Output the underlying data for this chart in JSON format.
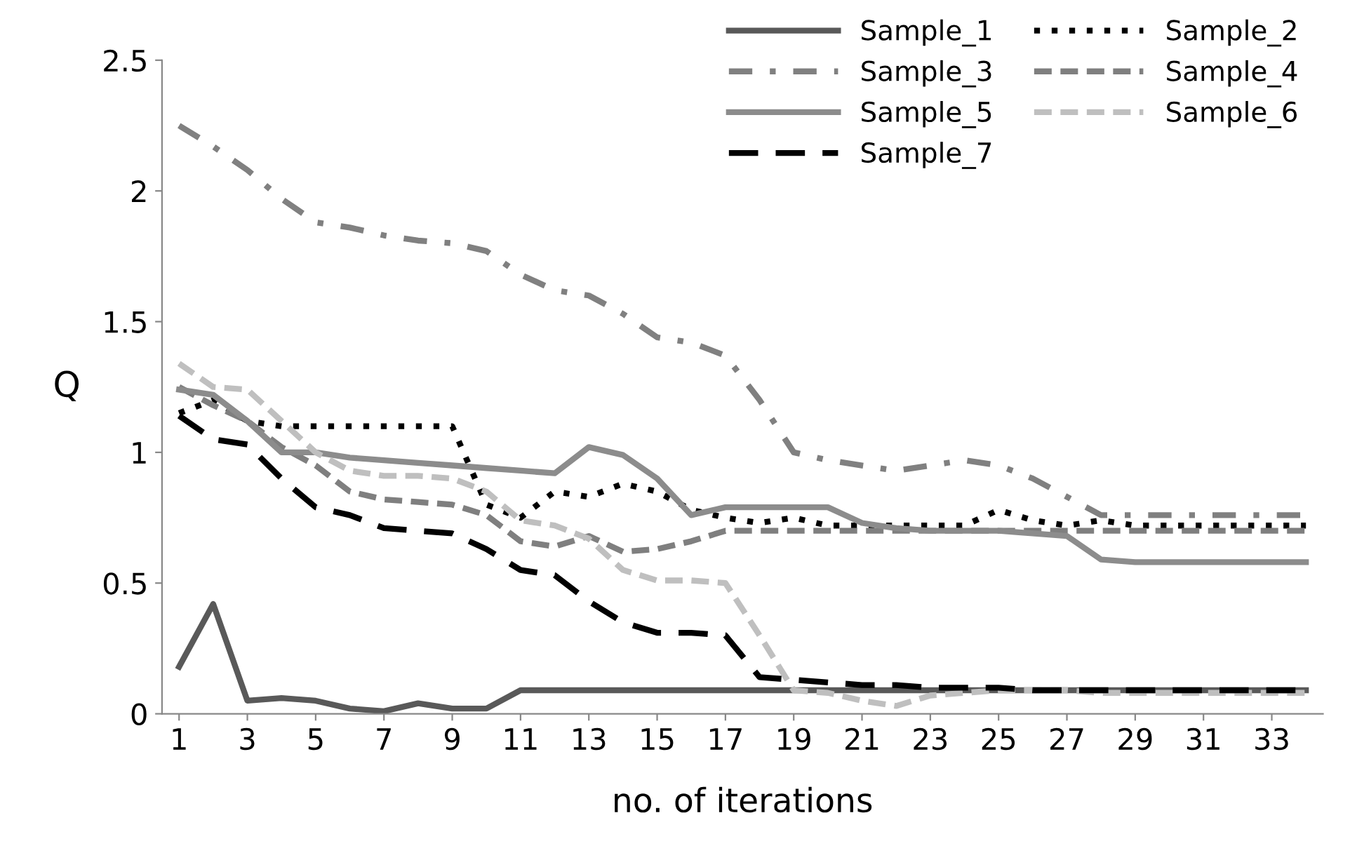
{
  "chart_data": {
    "type": "line",
    "xlabel": "no. of iterations",
    "ylabel": "Q",
    "x": [
      1,
      2,
      3,
      4,
      5,
      6,
      7,
      8,
      9,
      10,
      11,
      12,
      13,
      14,
      15,
      16,
      17,
      18,
      19,
      20,
      21,
      22,
      23,
      24,
      25,
      26,
      27,
      28,
      29,
      30,
      31,
      32,
      33,
      34
    ],
    "xlim": [
      0.5,
      34.5
    ],
    "xticks": [
      1,
      3,
      5,
      7,
      9,
      11,
      13,
      15,
      17,
      19,
      21,
      23,
      25,
      27,
      29,
      31,
      33
    ],
    "ylim": [
      0,
      2.5
    ],
    "yticks": [
      0,
      0.5,
      1,
      1.5,
      2,
      2.5
    ],
    "grid": false,
    "legend": "top right",
    "series": [
      {
        "name": "Sample_1",
        "color": "#595959",
        "line_style": "solid",
        "values": [
          0.18,
          0.42,
          0.05,
          0.06,
          0.05,
          0.02,
          0.01,
          0.04,
          0.02,
          0.02,
          0.09,
          0.09,
          0.09,
          0.09,
          0.09,
          0.09,
          0.09,
          0.09,
          0.09,
          0.09,
          0.09,
          0.09,
          0.09,
          0.09,
          0.09,
          0.09,
          0.09,
          0.09,
          0.09,
          0.09,
          0.09,
          0.09,
          0.09,
          0.09
        ]
      },
      {
        "name": "Sample_2",
        "color": "#000000",
        "line_style": "dotted",
        "values": [
          1.15,
          1.2,
          1.12,
          1.1,
          1.1,
          1.1,
          1.1,
          1.1,
          1.1,
          0.8,
          0.75,
          0.85,
          0.83,
          0.88,
          0.85,
          0.78,
          0.75,
          0.73,
          0.75,
          0.72,
          0.72,
          0.72,
          0.72,
          0.72,
          0.78,
          0.74,
          0.72,
          0.74,
          0.72,
          0.72,
          0.72,
          0.72,
          0.72,
          0.72
        ]
      },
      {
        "name": "Sample_3",
        "color": "#808080",
        "line_style": "dashdot",
        "values": [
          2.25,
          2.17,
          2.08,
          1.97,
          1.88,
          1.86,
          1.83,
          1.81,
          1.8,
          1.77,
          1.68,
          1.62,
          1.6,
          1.53,
          1.44,
          1.42,
          1.37,
          1.2,
          1.0,
          0.97,
          0.95,
          0.93,
          0.95,
          0.97,
          0.95,
          0.9,
          0.83,
          0.76,
          0.76,
          0.76,
          0.76,
          0.76,
          0.76,
          0.76
        ]
      },
      {
        "name": "Sample_4",
        "color": "#7f7f7f",
        "line_style": "dashed",
        "values": [
          1.25,
          1.18,
          1.12,
          1.02,
          0.95,
          0.85,
          0.82,
          0.81,
          0.8,
          0.76,
          0.66,
          0.64,
          0.68,
          0.62,
          0.63,
          0.66,
          0.7,
          0.7,
          0.7,
          0.7,
          0.7,
          0.7,
          0.7,
          0.7,
          0.7,
          0.7,
          0.7,
          0.7,
          0.7,
          0.7,
          0.7,
          0.7,
          0.7,
          0.7
        ]
      },
      {
        "name": "Sample_5",
        "color": "#8c8c8c",
        "line_style": "solid",
        "values": [
          1.24,
          1.22,
          1.12,
          1.0,
          1.0,
          0.98,
          0.97,
          0.96,
          0.95,
          0.94,
          0.93,
          0.92,
          1.02,
          0.99,
          0.9,
          0.76,
          0.79,
          0.79,
          0.79,
          0.79,
          0.73,
          0.71,
          0.7,
          0.7,
          0.7,
          0.69,
          0.68,
          0.59,
          0.58,
          0.58,
          0.58,
          0.58,
          0.58,
          0.58
        ]
      },
      {
        "name": "Sample_6",
        "color": "#bfbfbf",
        "line_style": "dashed",
        "values": [
          1.34,
          1.25,
          1.24,
          1.12,
          1.0,
          0.93,
          0.91,
          0.91,
          0.9,
          0.85,
          0.74,
          0.72,
          0.67,
          0.55,
          0.51,
          0.51,
          0.5,
          0.3,
          0.09,
          0.08,
          0.05,
          0.03,
          0.07,
          0.08,
          0.09,
          0.09,
          0.09,
          0.08,
          0.08,
          0.08,
          0.08,
          0.08,
          0.08,
          0.08
        ]
      },
      {
        "name": "Sample_7",
        "color": "#000000",
        "line_style": "long dashed",
        "values": [
          1.14,
          1.05,
          1.03,
          0.9,
          0.79,
          0.76,
          0.71,
          0.7,
          0.69,
          0.63,
          0.55,
          0.53,
          0.43,
          0.35,
          0.31,
          0.31,
          0.3,
          0.14,
          0.13,
          0.12,
          0.11,
          0.11,
          0.1,
          0.1,
          0.1,
          0.09,
          0.09,
          0.09,
          0.09,
          0.09,
          0.09,
          0.09,
          0.09,
          0.09
        ]
      }
    ]
  }
}
